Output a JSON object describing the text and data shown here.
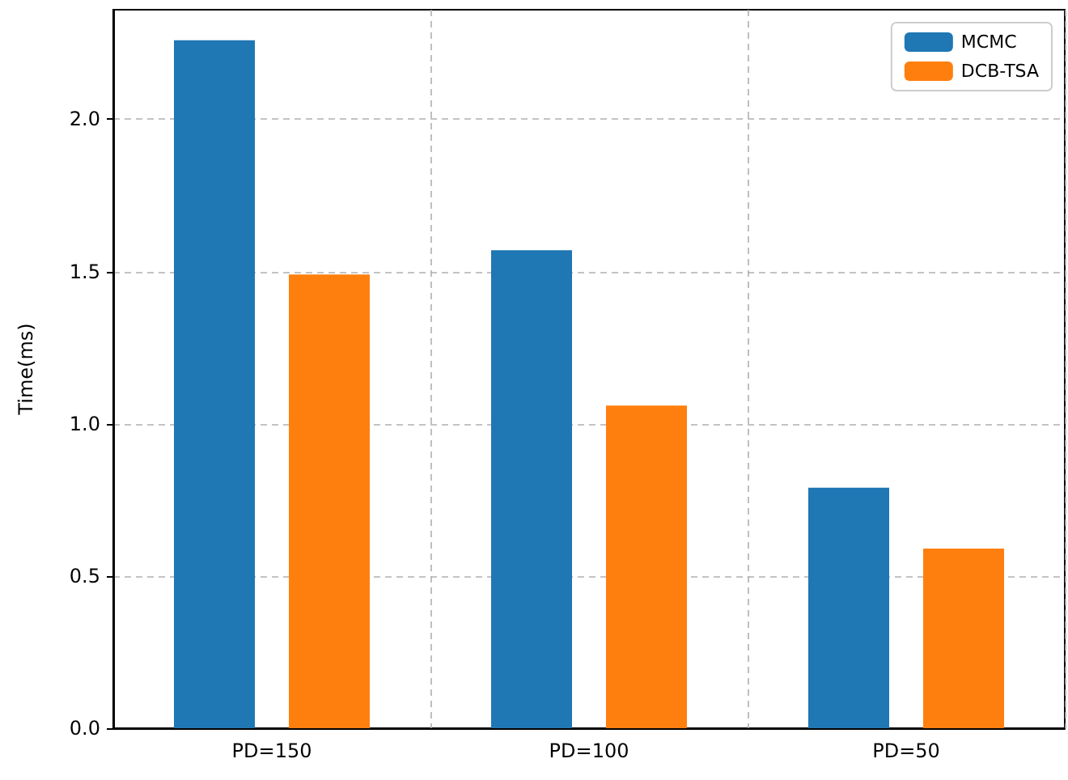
{
  "chart_data": {
    "type": "bar",
    "ylabel": "Time(ms)",
    "categories": [
      "PD=150",
      "PD=100",
      "PD=50"
    ],
    "series": [
      {
        "name": "MCMC",
        "color": "#1f77b4",
        "values": [
          2.26,
          1.57,
          0.79
        ]
      },
      {
        "name": "DCB-TSA",
        "color": "#ff7f0e",
        "values": [
          1.49,
          1.06,
          0.59
        ]
      }
    ],
    "ylim": [
      0,
      2.36
    ],
    "yticks": [
      {
        "value": 0,
        "label": "0.0"
      },
      {
        "value": 0.5,
        "label": "0.5"
      },
      {
        "value": 1,
        "label": "1.0"
      },
      {
        "value": 1.5,
        "label": "1.5"
      },
      {
        "value": 2,
        "label": "2.0"
      }
    ],
    "grid": true,
    "legend": "top right"
  }
}
